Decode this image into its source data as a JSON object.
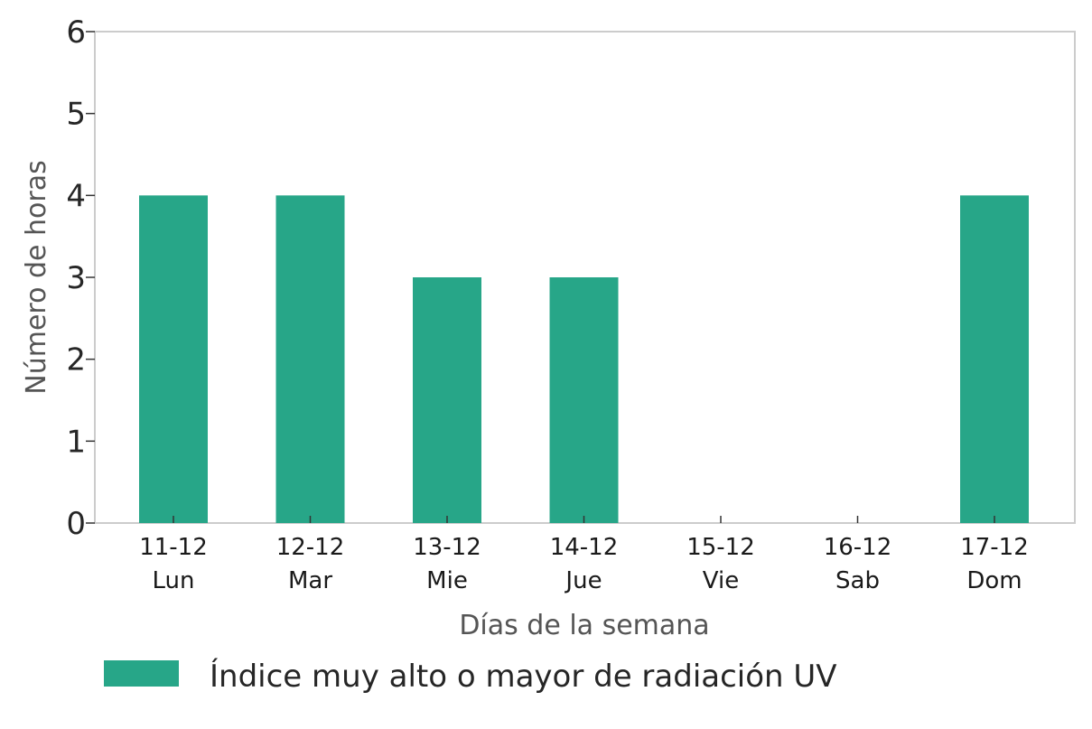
{
  "chart_data": {
    "type": "bar",
    "categories": [
      "11-12",
      "12-12",
      "13-12",
      "14-12",
      "15-12",
      "16-12",
      "17-12"
    ],
    "category_sublabels": [
      "Lun",
      "Mar",
      "Mie",
      "Jue",
      "Vie",
      "Sab",
      "Dom"
    ],
    "series": [
      {
        "name": "Índice muy alto o mayor de radiación UV",
        "values": [
          4,
          4,
          3,
          3,
          0,
          0,
          4
        ],
        "color": "#27a688"
      }
    ],
    "xlabel": "Días de la semana",
    "ylabel": "Número de horas",
    "ylim": [
      0,
      6
    ],
    "yticks": [
      "0",
      "1",
      "2",
      "3",
      "4",
      "5",
      "6"
    ],
    "grid": false,
    "legend_position": "bottom",
    "frame_color": "#cccccc"
  }
}
